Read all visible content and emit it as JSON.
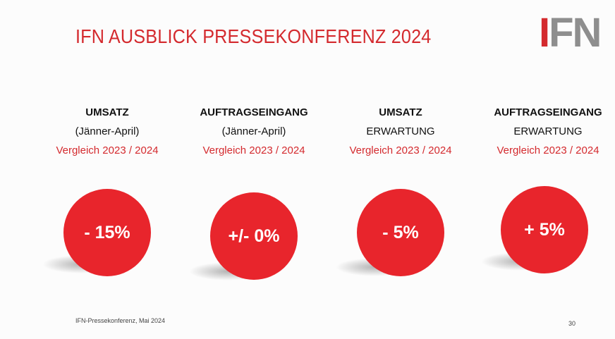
{
  "header": {
    "title": "IFN AUSBLICK PRESSEKONFERENZ 2024",
    "logo": "IFN"
  },
  "columns": [
    {
      "heading": "UMSATZ",
      "subtitle": "(Jänner-April)",
      "comparison": "Vergleich 2023 / 2024",
      "value": "- 15%"
    },
    {
      "heading": "AUFTRAGSEINGANG",
      "subtitle": "(Jänner-April)",
      "comparison": "Vergleich 2023 / 2024",
      "value": "+/- 0%"
    },
    {
      "heading": "UMSATZ",
      "subtitle": "ERWARTUNG",
      "comparison": "Vergleich 2023 / 2024",
      "value": "- 5%"
    },
    {
      "heading": "AUFTRAGSEINGANG",
      "subtitle": "ERWARTUNG",
      "comparison": "Vergleich 2023 / 2024",
      "value": "+ 5%"
    }
  ],
  "footer": {
    "text": "IFN-Pressekonferenz, Mai 2024",
    "page": "30"
  }
}
